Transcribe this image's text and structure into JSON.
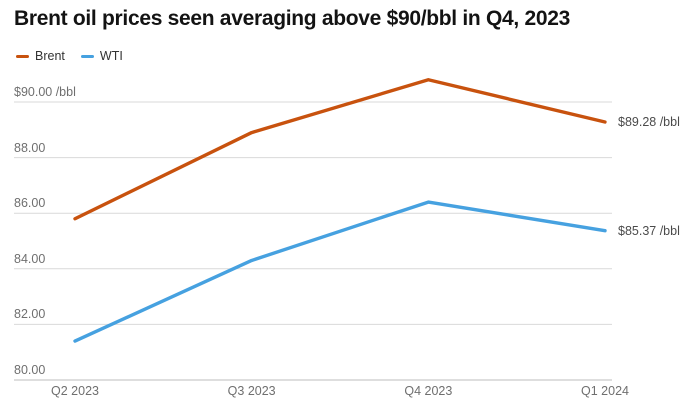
{
  "header": {
    "title": "Brent oil prices seen averaging above $90/bbl in Q4, 2023"
  },
  "legend": {
    "items": [
      {
        "label": "Brent",
        "color": "#c8520e"
      },
      {
        "label": "WTI",
        "color": "#46a1e0"
      }
    ]
  },
  "chart_data": {
    "type": "line",
    "title": "Brent oil prices seen averaging above $90/bbl in Q4, 2023",
    "categories": [
      "Q2 2023",
      "Q3 2023",
      "Q4 2023",
      "Q1 2024"
    ],
    "series": [
      {
        "name": "Brent",
        "color": "#c8520e",
        "values": [
          85.8,
          88.9,
          90.8,
          89.28
        ]
      },
      {
        "name": "WTI",
        "color": "#46a1e0",
        "values": [
          81.4,
          84.3,
          86.4,
          85.37
        ]
      }
    ],
    "xlabel": "",
    "ylabel": "$ /bbl",
    "ylim": [
      80,
      90
    ],
    "y_ticks": [
      {
        "value": 90,
        "label": "$90.00 /bbl"
      },
      {
        "value": 88,
        "label": "88.00"
      },
      {
        "value": 86,
        "label": "86.00"
      },
      {
        "value": 84,
        "label": "84.00"
      },
      {
        "value": 82,
        "label": "82.00"
      },
      {
        "value": 80,
        "label": "80.00"
      }
    ],
    "end_labels": [
      {
        "series": "Brent",
        "text": "$89.28 /bbl"
      },
      {
        "series": "WTI",
        "text": "$85.37 /bbl"
      }
    ],
    "grid": "horizontal",
    "legend_position": "top-left"
  },
  "colors": {
    "grid_line": "#d9d9d9",
    "baseline": "#bdbdbd",
    "tick_text": "#6f6f6f",
    "end_label_text": "#4b4b4b",
    "title_text": "#131313"
  }
}
